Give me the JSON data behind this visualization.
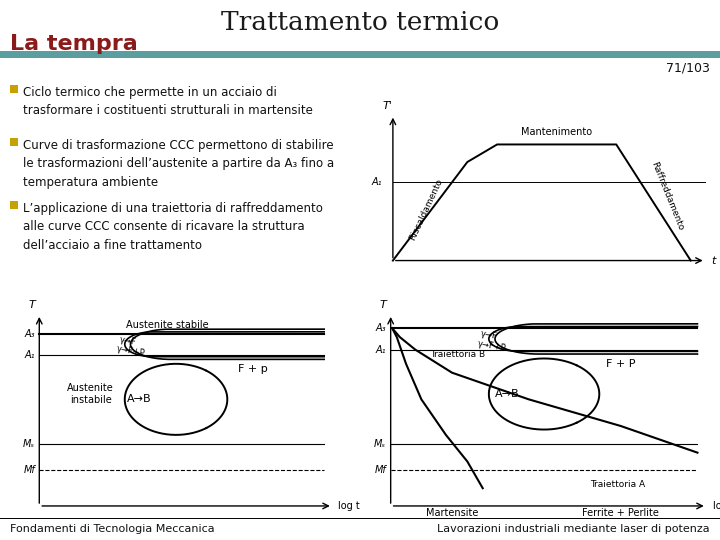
{
  "title": "Trattamento termico",
  "subtitle": "La tempra",
  "page_num": "71/103",
  "teal_bar_color": "#5b9ea0",
  "subtitle_color": "#8b1a1a",
  "title_color": "#1a1a1a",
  "background_color": "#ffffff",
  "bullet_color": "#c8a000",
  "bullet_points": [
    "Ciclo termico che permette in un acciaio di\ntrasformare i costituenti strutturali in martensite",
    "Curve di trasformazione CCC permettono di stabilire\nle trasformazioni dell’austenite a partire da A₃ fino a\ntemperatura ambiente",
    "L’applicazione di una traiettoria di raffreddamento\nalle curve CCC consente di ricavare la struttura\ndell’acciaio a fine trattamento"
  ],
  "footer_left": "Fondamenti di Tecnologia Meccanica",
  "footer_right": "Lavorazioni industriali mediante laser di potenza",
  "text_color": "#111111"
}
